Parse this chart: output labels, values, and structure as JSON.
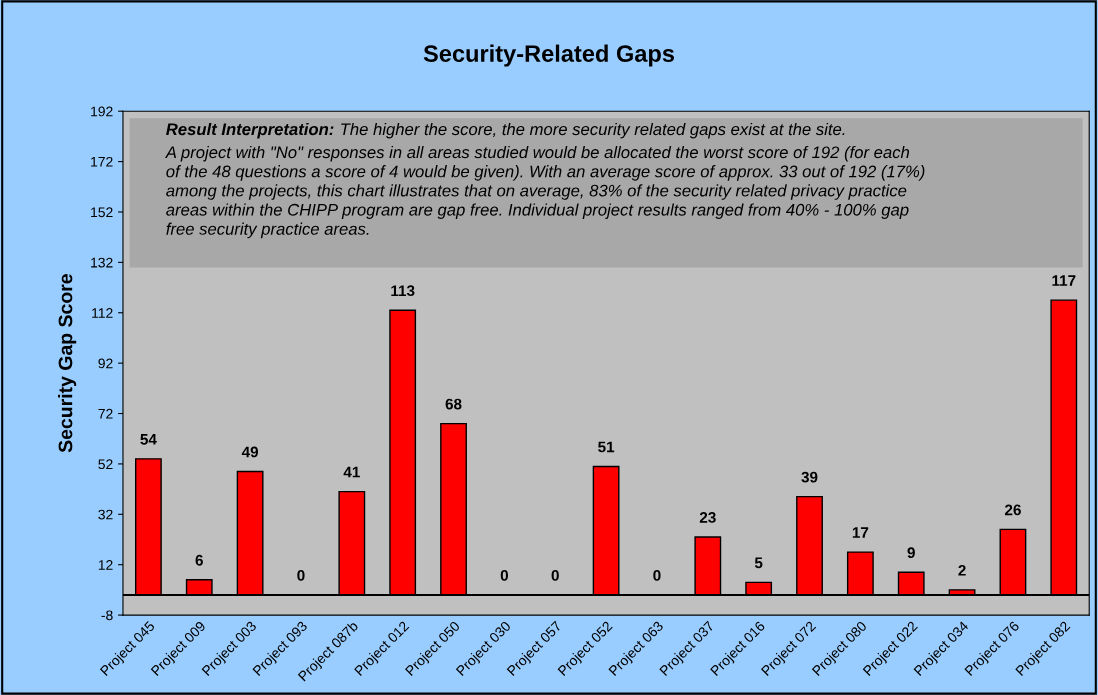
{
  "chart_data": {
    "type": "bar",
    "title": "Security-Related Gaps",
    "ylabel": "Security Gap Score",
    "categories": [
      "Project 045",
      "Project 009",
      "Project 003",
      "Project 093",
      "Project 087b",
      "Project 012",
      "Project 050",
      "Project 030",
      "Project 057",
      "Project 052",
      "Project 063",
      "Project 037",
      "Project 016",
      "Project 072",
      "Project 080",
      "Project 022",
      "Project 034",
      "Project 076",
      "Project 082"
    ],
    "values": [
      54,
      6,
      49,
      0,
      41,
      113,
      68,
      0,
      0,
      51,
      0,
      23,
      5,
      39,
      17,
      9,
      2,
      26,
      117
    ],
    "color": "#ff0000",
    "data_labels": true,
    "ylim": [
      -8,
      192
    ],
    "yticks": [
      -8,
      12,
      32,
      52,
      72,
      92,
      112,
      132,
      152,
      172,
      192
    ],
    "grid": false,
    "legend": false,
    "annotations": [
      "Result Interpretation:",
      "The higher the score, the more security related gaps exist at the site.\nA project with \"No\" responses in all areas studied would be allocated the worst score of 192 (for each\nof the 48 questions a score of 4 would be given). With an average score of approx. 33 out of 192 (17%)\namong the projects, this chart illustrates that on average, 83% of the security related privacy practice\nareas within the CHIPP program are gap free. Individual project results ranged from 40% - 100% gap\nfree security practice areas."
    ]
  }
}
